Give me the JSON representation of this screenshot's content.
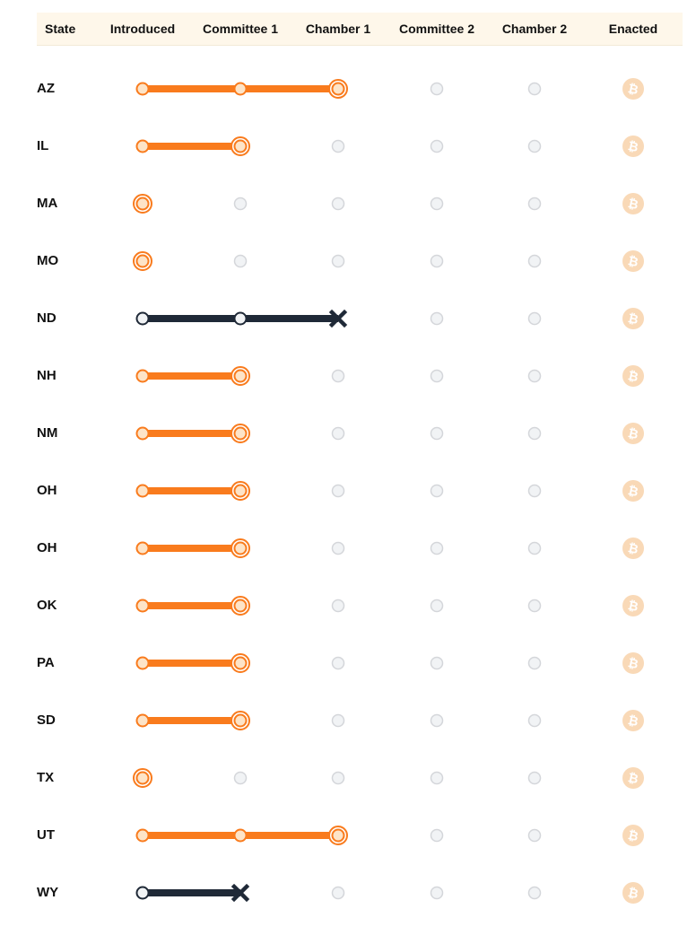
{
  "header": {
    "columns": [
      "State",
      "Introduced",
      "Committee 1",
      "Chamber 1",
      "Committee 2",
      "Chamber 2",
      "Enacted"
    ]
  },
  "colors": {
    "active": "#f97b1d",
    "active_fill": "#fde4c8",
    "failed": "#1f2937",
    "pending_fill": "#f1f3f5",
    "pending_stroke": "#d4d6da",
    "enacted_icon": "#f9d9b7"
  },
  "enacted_icon": "bitcoin-icon",
  "rows": [
    {
      "state": "AZ",
      "stage": 2,
      "status": "active"
    },
    {
      "state": "IL",
      "stage": 1,
      "status": "active"
    },
    {
      "state": "MA",
      "stage": 0,
      "status": "active"
    },
    {
      "state": "MO",
      "stage": 0,
      "status": "active"
    },
    {
      "state": "ND",
      "stage": 2,
      "status": "failed"
    },
    {
      "state": "NH",
      "stage": 1,
      "status": "active"
    },
    {
      "state": "NM",
      "stage": 1,
      "status": "active"
    },
    {
      "state": "OH",
      "stage": 1,
      "status": "active"
    },
    {
      "state": "OH",
      "stage": 1,
      "status": "active"
    },
    {
      "state": "OK",
      "stage": 1,
      "status": "active"
    },
    {
      "state": "PA",
      "stage": 1,
      "status": "active"
    },
    {
      "state": "SD",
      "stage": 1,
      "status": "active"
    },
    {
      "state": "TX",
      "stage": 0,
      "status": "active"
    },
    {
      "state": "UT",
      "stage": 2,
      "status": "active"
    },
    {
      "state": "WY",
      "stage": 1,
      "status": "failed"
    }
  ]
}
